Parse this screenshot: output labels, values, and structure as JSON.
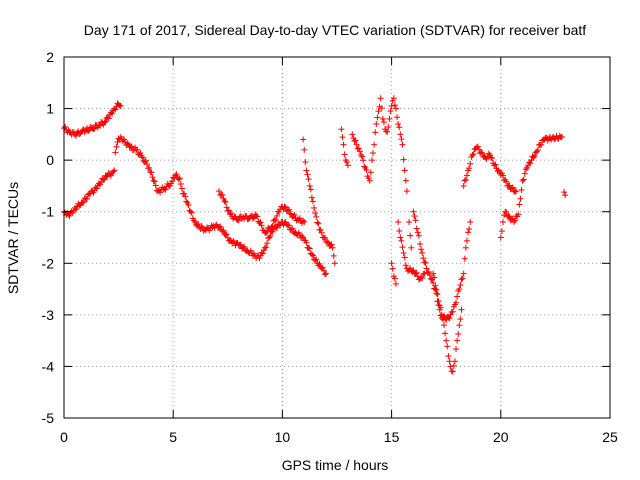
{
  "chart_data": {
    "type": "scatter",
    "title": "Day 171 of 2017, Sidereal Day-to-day VTEC variation (SDTVAR) for receiver batf",
    "xlabel": "GPS time / hours",
    "ylabel": "SDTVAR / TECUs",
    "xlim": [
      0,
      25
    ],
    "ylim": [
      -5,
      2
    ],
    "x_ticks": [
      "0",
      "5",
      "10",
      "15",
      "20",
      "25"
    ],
    "y_ticks": [
      "2",
      "1",
      "0",
      "-1",
      "-2",
      "-3",
      "-4",
      "-5"
    ],
    "grid": true,
    "marker": "+",
    "point_color": "#ff0000",
    "series": [
      {
        "points": [
          [
            0.0,
            0.62
          ],
          [
            0.25,
            0.55
          ],
          [
            0.5,
            0.5
          ],
          [
            0.8,
            0.55
          ],
          [
            1.0,
            0.58
          ],
          [
            1.3,
            0.62
          ],
          [
            1.6,
            0.68
          ],
          [
            1.9,
            0.75
          ],
          [
            2.1,
            0.88
          ],
          [
            2.3,
            1.0
          ],
          [
            2.5,
            1.08
          ],
          [
            2.6,
            1.05
          ],
          [
            0.0,
            -1.0
          ],
          [
            0.2,
            -1.05
          ],
          [
            0.4,
            -1.02
          ],
          [
            0.6,
            -0.9
          ],
          [
            0.8,
            -0.82
          ],
          [
            1.0,
            -0.75
          ],
          [
            1.2,
            -0.65
          ],
          [
            1.4,
            -0.58
          ],
          [
            1.6,
            -0.45
          ],
          [
            1.8,
            -0.38
          ],
          [
            2.0,
            -0.3
          ],
          [
            2.2,
            -0.25
          ],
          [
            2.3,
            -0.2
          ],
          [
            2.35,
            0.15
          ],
          [
            2.45,
            0.35
          ],
          [
            2.6,
            0.45
          ],
          [
            2.8,
            0.35
          ],
          [
            3.0,
            0.25
          ],
          [
            3.3,
            0.2
          ],
          [
            3.6,
            0.05
          ],
          [
            3.9,
            -0.15
          ],
          [
            4.1,
            -0.4
          ],
          [
            4.3,
            -0.6
          ],
          [
            4.6,
            -0.55
          ],
          [
            4.9,
            -0.45
          ],
          [
            5.1,
            -0.3
          ],
          [
            5.3,
            -0.35
          ],
          [
            5.4,
            -0.55
          ],
          [
            5.6,
            -0.8
          ],
          [
            5.8,
            -1.0
          ],
          [
            6.0,
            -1.2
          ],
          [
            6.2,
            -1.3
          ],
          [
            6.5,
            -1.35
          ],
          [
            6.8,
            -1.3
          ],
          [
            7.0,
            -1.25
          ],
          [
            7.2,
            -1.35
          ],
          [
            7.4,
            -1.45
          ],
          [
            7.6,
            -1.55
          ],
          [
            7.8,
            -1.6
          ],
          [
            8.0,
            -1.65
          ],
          [
            8.2,
            -1.7
          ],
          [
            8.4,
            -1.75
          ],
          [
            8.6,
            -1.8
          ],
          [
            8.8,
            -1.9
          ],
          [
            9.0,
            -1.85
          ],
          [
            9.2,
            -1.7
          ],
          [
            9.4,
            -1.5
          ],
          [
            9.6,
            -1.35
          ],
          [
            9.8,
            -1.25
          ],
          [
            10.0,
            -1.2
          ],
          [
            10.2,
            -1.25
          ],
          [
            10.4,
            -1.35
          ],
          [
            10.6,
            -1.4
          ],
          [
            10.8,
            -1.45
          ],
          [
            11.0,
            -1.55
          ],
          [
            11.2,
            -1.7
          ],
          [
            11.4,
            -1.85
          ],
          [
            11.6,
            -2.0
          ],
          [
            11.8,
            -2.1
          ],
          [
            12.0,
            -2.2
          ],
          [
            7.1,
            -0.6
          ],
          [
            7.3,
            -0.75
          ],
          [
            7.6,
            -1.05
          ],
          [
            7.9,
            -1.15
          ],
          [
            8.2,
            -1.1
          ],
          [
            8.5,
            -1.12
          ],
          [
            8.8,
            -1.08
          ],
          [
            9.2,
            -1.4
          ],
          [
            9.5,
            -1.3
          ],
          [
            9.9,
            -0.95
          ],
          [
            10.1,
            -0.9
          ],
          [
            10.4,
            -1.05
          ],
          [
            10.7,
            -1.15
          ],
          [
            11.0,
            -1.2
          ],
          [
            10.95,
            0.4
          ],
          [
            11.0,
            0.2
          ],
          [
            11.1,
            -0.2
          ],
          [
            11.25,
            -0.5
          ],
          [
            11.4,
            -0.8
          ],
          [
            11.55,
            -1.1
          ],
          [
            11.7,
            -1.35
          ],
          [
            11.9,
            -1.5
          ],
          [
            12.1,
            -1.6
          ],
          [
            12.3,
            -1.7
          ],
          [
            12.4,
            -2.0
          ],
          [
            12.7,
            0.6
          ],
          [
            12.8,
            0.3
          ],
          [
            12.9,
            0.0
          ],
          [
            13.0,
            -0.1
          ],
          [
            13.2,
            0.5
          ],
          [
            13.4,
            0.3
          ],
          [
            13.6,
            0.1
          ],
          [
            13.8,
            -0.15
          ],
          [
            14.0,
            -0.4
          ],
          [
            14.1,
            0.0
          ],
          [
            14.2,
            0.3
          ],
          [
            14.3,
            0.7
          ],
          [
            14.4,
            0.95
          ],
          [
            14.5,
            1.2
          ],
          [
            14.6,
            0.8
          ],
          [
            14.7,
            0.6
          ],
          [
            14.8,
            0.55
          ],
          [
            14.9,
            0.8
          ],
          [
            15.0,
            1.05
          ],
          [
            15.1,
            1.2
          ],
          [
            15.2,
            1.0
          ],
          [
            15.3,
            0.7
          ],
          [
            15.4,
            0.5
          ],
          [
            15.5,
            0.3
          ],
          [
            15.6,
            -0.2
          ],
          [
            15.7,
            -0.6
          ],
          [
            15.8,
            -1.2
          ],
          [
            15.9,
            -1.7
          ],
          [
            15.0,
            -2.0
          ],
          [
            15.1,
            -2.25
          ],
          [
            15.2,
            -2.4
          ],
          [
            15.3,
            -1.2
          ],
          [
            15.4,
            -1.5
          ],
          [
            15.55,
            -1.8
          ],
          [
            15.7,
            -2.1
          ],
          [
            15.9,
            -2.15
          ],
          [
            16.1,
            -2.2
          ],
          [
            16.3,
            -2.3
          ],
          [
            16.5,
            -2.2
          ],
          [
            16.0,
            -1.0
          ],
          [
            16.2,
            -1.4
          ],
          [
            16.4,
            -1.8
          ],
          [
            16.6,
            -2.1
          ],
          [
            16.8,
            -2.3
          ],
          [
            17.0,
            -2.5
          ],
          [
            17.2,
            -2.9
          ],
          [
            17.4,
            -3.2
          ],
          [
            17.5,
            -3.5
          ],
          [
            17.6,
            -3.8
          ],
          [
            17.7,
            -4.0
          ],
          [
            17.8,
            -4.1
          ],
          [
            17.9,
            -3.9
          ],
          [
            18.0,
            -3.5
          ],
          [
            18.1,
            -3.2
          ],
          [
            18.2,
            -2.9
          ],
          [
            16.9,
            -2.2
          ],
          [
            17.1,
            -2.6
          ],
          [
            17.3,
            -3.0
          ],
          [
            17.5,
            -3.1
          ],
          [
            17.7,
            -3.0
          ],
          [
            17.9,
            -2.8
          ],
          [
            18.1,
            -2.5
          ],
          [
            18.3,
            -2.2
          ],
          [
            18.4,
            -1.7
          ],
          [
            18.5,
            -1.4
          ],
          [
            18.6,
            -1.2
          ],
          [
            18.3,
            -0.5
          ],
          [
            18.5,
            -0.2
          ],
          [
            18.7,
            0.1
          ],
          [
            18.9,
            0.25
          ],
          [
            19.1,
            0.15
          ],
          [
            19.3,
            0.05
          ],
          [
            19.5,
            0.1
          ],
          [
            19.7,
            -0.1
          ],
          [
            19.9,
            -0.2
          ],
          [
            20.1,
            -0.3
          ],
          [
            20.3,
            -0.5
          ],
          [
            20.5,
            -0.55
          ],
          [
            20.7,
            -0.6
          ],
          [
            20.0,
            -1.5
          ],
          [
            20.1,
            -1.2
          ],
          [
            20.2,
            -1.0
          ],
          [
            20.4,
            -1.1
          ],
          [
            20.6,
            -1.2
          ],
          [
            20.8,
            -1.05
          ],
          [
            20.9,
            -0.75
          ],
          [
            21.0,
            -0.4
          ],
          [
            21.2,
            -0.15
          ],
          [
            21.4,
            0.0
          ],
          [
            21.6,
            0.15
          ],
          [
            21.8,
            0.3
          ],
          [
            22.0,
            0.4
          ],
          [
            22.2,
            0.42
          ],
          [
            22.4,
            0.45
          ],
          [
            22.6,
            0.42
          ],
          [
            22.8,
            0.45
          ],
          [
            22.9,
            -0.62
          ],
          [
            22.95,
            -0.68
          ]
        ]
      }
    ]
  }
}
